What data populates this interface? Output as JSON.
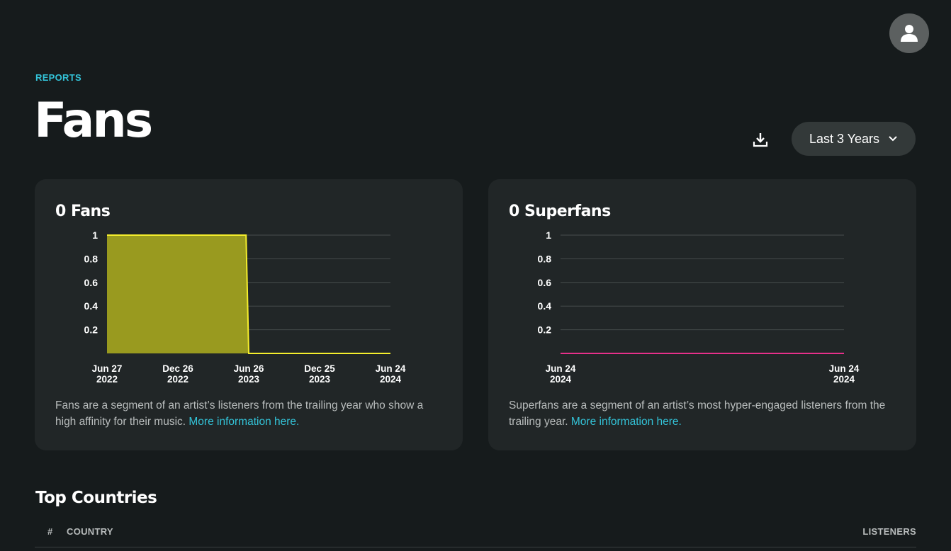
{
  "header": {
    "kicker": "REPORTS",
    "title": "Fans",
    "range_label": "Last 3 Years",
    "icons": {
      "avatar": "user-icon",
      "download": "download-icon",
      "range": "chevron-down-icon"
    }
  },
  "fans_card": {
    "title": "0 Fans",
    "description": "Fans are a segment of an artist’s listeners from the trailing year who show a high affinity for their music.",
    "link": "More information here.",
    "color": "#f5ee2c",
    "fill": "#999a1f"
  },
  "superfans_card": {
    "title": "0 Superfans",
    "description": "Superfans are a segment of an artist’s most hyper-engaged listeners from the trailing year.",
    "link": "More information here.",
    "color": "#e6308a"
  },
  "chart_data": [
    {
      "type": "area",
      "title": "0 Fans",
      "y_ticks": [
        "1",
        "0.8",
        "0.6",
        "0.4",
        "0.2"
      ],
      "ylim": [
        0,
        1
      ],
      "x_ticks": [
        {
          "line1": "Jun 27",
          "line2": "2022"
        },
        {
          "line1": "Dec 26",
          "line2": "2022"
        },
        {
          "line1": "Jun 26",
          "line2": "2023"
        },
        {
          "line1": "Dec 25",
          "line2": "2023"
        },
        {
          "line1": "Jun 24",
          "line2": "2024"
        }
      ],
      "x": [
        "2022-06-27",
        "2023-06-19",
        "2023-06-26",
        "2024-06-24"
      ],
      "values": [
        1,
        1,
        0,
        0
      ],
      "grid": true
    },
    {
      "type": "line",
      "title": "0 Superfans",
      "y_ticks": [
        "1",
        "0.8",
        "0.6",
        "0.4",
        "0.2"
      ],
      "ylim": [
        0,
        1
      ],
      "x_ticks": [
        {
          "line1": "Jun 24",
          "line2": "2024"
        },
        {
          "line1": "Jun 24",
          "line2": "2024"
        }
      ],
      "x": [
        "2024-06-24",
        "2024-06-24"
      ],
      "values": [
        0,
        0
      ],
      "grid": true
    }
  ],
  "top_countries": {
    "title": "Top Countries",
    "columns": {
      "num": "#",
      "country": "COUNTRY",
      "listeners": "LISTENERS"
    }
  }
}
